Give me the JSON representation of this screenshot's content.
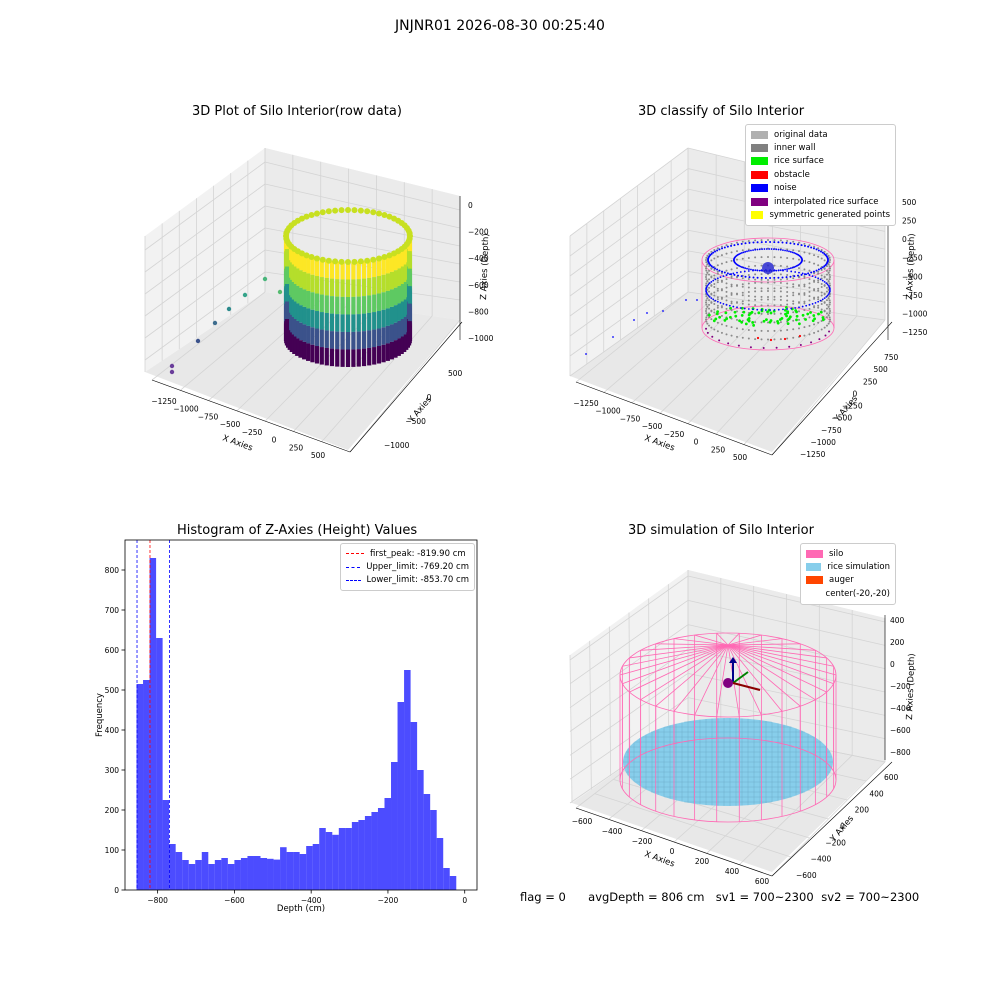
{
  "figure": {
    "suptitle": "JNJNR01 2026-08-30 00:25:40"
  },
  "panel_raw": {
    "title": "3D Plot of Silo Interior(row data)",
    "xlabel": "X Axies",
    "ylabel": "Y Axies",
    "zlabel": "Z Axies (Depth)",
    "xticks": [
      "-1250",
      "-1000",
      "-750",
      "-500",
      "-250",
      "0",
      "250",
      "500"
    ],
    "yticks": [
      "500",
      "0",
      "-500",
      "-1000"
    ],
    "zticks": [
      "0",
      "-200",
      "-400",
      "-600",
      "-800",
      "-1000"
    ]
  },
  "panel_classify": {
    "title": "3D classify of Silo Interior",
    "xlabel": "X Axies",
    "ylabel": "Y Axies",
    "zlabel": "Z Axies (Depth)",
    "xticks": [
      "-1250",
      "-1000",
      "-750",
      "-500",
      "-250",
      "0",
      "250",
      "500"
    ],
    "yticks": [
      "750",
      "500",
      "250",
      "0",
      "-250",
      "-500",
      "-750",
      "-1000",
      "-1250"
    ],
    "zticks": [
      "500",
      "250",
      "0",
      "-250",
      "-500",
      "-750",
      "-1000",
      "-1250"
    ],
    "legend": [
      {
        "label": "original data",
        "color": "#b0b0b0"
      },
      {
        "label": "inner wall",
        "color": "#808080"
      },
      {
        "label": "rice surface",
        "color": "#00ee00"
      },
      {
        "label": "obstacle",
        "color": "#ff0000"
      },
      {
        "label": "noise",
        "color": "#0000ff"
      },
      {
        "label": "interpolated rice surface",
        "color": "#800080"
      },
      {
        "label": "symmetric generated points",
        "color": "#ffff00"
      }
    ]
  },
  "panel_sim": {
    "title": "3D simulation of Silo Interior",
    "xlabel": "X Axies",
    "ylabel": "Y Axies",
    "zlabel": "Z Axies (Depth)",
    "xticks": [
      "-600",
      "-400",
      "-200",
      "0",
      "200",
      "400",
      "600"
    ],
    "yticks": [
      "600",
      "400",
      "200",
      "0",
      "-200",
      "-400",
      "-600"
    ],
    "zticks": [
      "400",
      "200",
      "0",
      "-200",
      "-400",
      "-600",
      "-800"
    ],
    "legend": [
      {
        "label": "silo",
        "color": "#ff69b4"
      },
      {
        "label": "rice simulation",
        "color": "#87ceeb"
      },
      {
        "label": "auger",
        "color": "#ff4500"
      },
      {
        "label": "center(-20,-20)",
        "color": ""
      }
    ]
  },
  "chart_data": {
    "type": "bar",
    "title": "Histogram of Z-Axies (Height) Values",
    "xlabel": "Depth (cm)",
    "ylabel": "Frequency",
    "xlim": [
      -885,
      32
    ],
    "ylim": [
      0,
      875
    ],
    "xticks": [
      -800,
      -600,
      -400,
      -200,
      0
    ],
    "yticks": [
      0,
      100,
      200,
      300,
      400,
      500,
      600,
      700,
      800
    ],
    "bar_color": "#0000ff",
    "bin_start": -855,
    "bin_width": 17,
    "values": [
      515,
      525,
      830,
      630,
      225,
      115,
      95,
      75,
      65,
      75,
      95,
      65,
      75,
      80,
      65,
      75,
      80,
      85,
      85,
      80,
      78,
      76,
      107,
      95,
      95,
      90,
      110,
      115,
      155,
      145,
      138,
      155,
      155,
      170,
      175,
      185,
      195,
      205,
      230,
      320,
      470,
      550,
      420,
      300,
      240,
      200,
      130,
      55,
      35
    ],
    "vlines": [
      {
        "label": "first_peak: -819.90 cm",
        "x": -819.9,
        "color": "#ff0000"
      },
      {
        "label": "Upper_limit: -769.20 cm",
        "x": -769.2,
        "color": "#0000ff"
      },
      {
        "label": "Lower_limit: -853.70 cm",
        "x": -853.7,
        "color": "#0000ff"
      }
    ]
  },
  "footer": {
    "flag": "flag = 0",
    "avg": "avgDepth = 806 cm",
    "sv1": "sv1 = 700~2300",
    "sv2": "sv2 = 700~2300"
  }
}
